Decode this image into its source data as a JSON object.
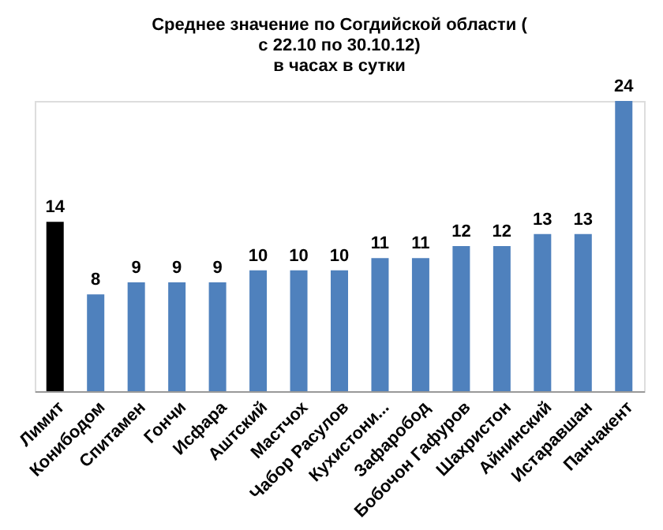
{
  "chart_data": {
    "type": "bar",
    "title": [
      "Среднее значение по Согдийской области (",
      "с 22.10 по 30.10.12)",
      "в часах в сутки"
    ],
    "categories": [
      "Лимит",
      "Конибодом",
      "Спитамен",
      "Гончи",
      "Исфара",
      "Аштский",
      "Мастчох",
      "Чабор Расулов",
      "Кухистони...",
      "Зафаробод",
      "Бобочон Гафуров",
      "Шахристон",
      "Айнинский",
      "Истаравшан",
      "Панчакент"
    ],
    "values": [
      14,
      8,
      9,
      9,
      9,
      10,
      10,
      10,
      11,
      11,
      12,
      12,
      13,
      13,
      24
    ],
    "colors": [
      "#000000",
      "#4f81bd",
      "#4f81bd",
      "#4f81bd",
      "#4f81bd",
      "#4f81bd",
      "#4f81bd",
      "#4f81bd",
      "#4f81bd",
      "#4f81bd",
      "#4f81bd",
      "#4f81bd",
      "#4f81bd",
      "#4f81bd",
      "#4f81bd"
    ],
    "data_labels": true
  }
}
